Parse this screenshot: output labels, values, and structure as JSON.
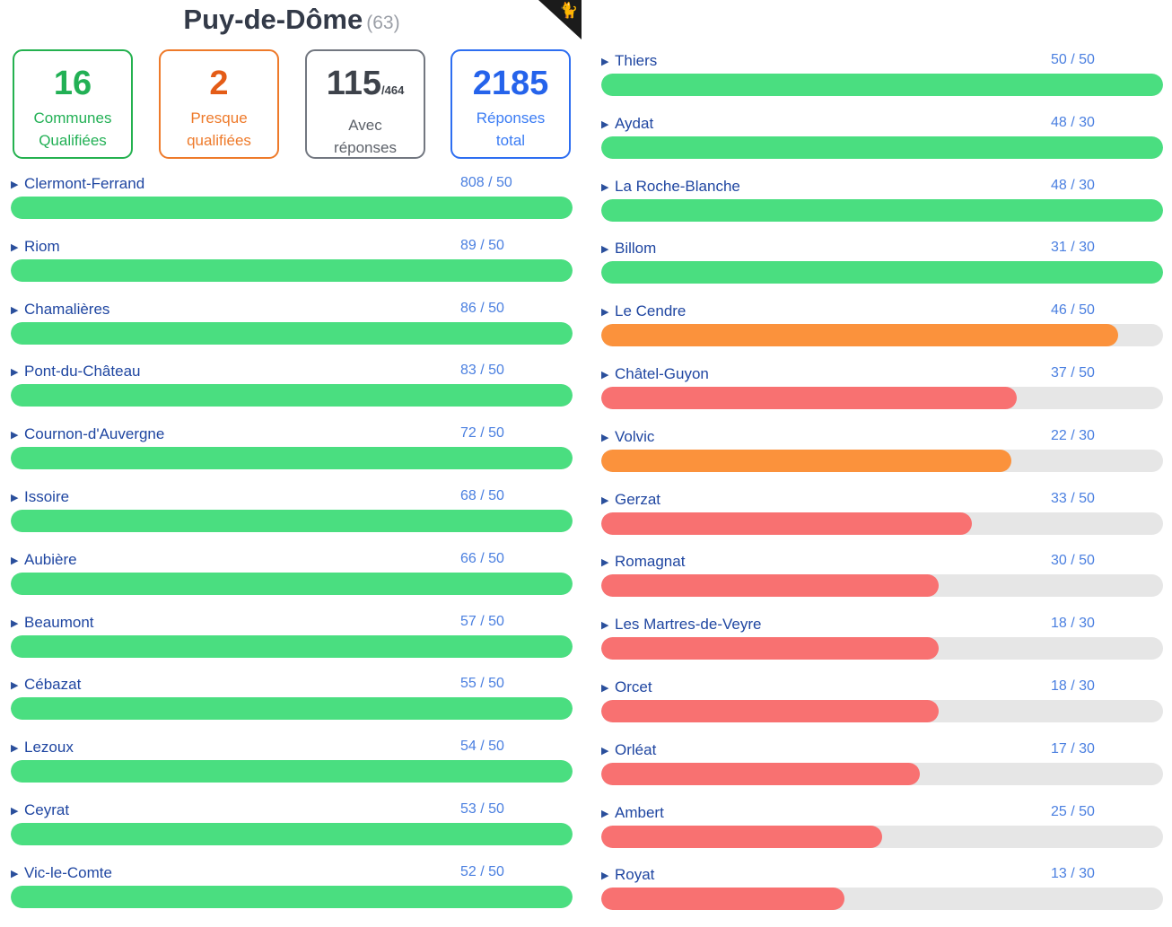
{
  "header": {
    "title": "Puy-de-Dôme",
    "code": "(63)"
  },
  "stats": {
    "qualified": {
      "value": "16",
      "label1": "Communes",
      "label2": "Qualifiées"
    },
    "almost": {
      "value": "2",
      "label1": "Presque",
      "label2": "qualifiées"
    },
    "with_responses": {
      "value": "115",
      "total": "/464",
      "label1": "Avec",
      "label2": "réponses"
    },
    "responses": {
      "value": "2185",
      "label1": "Réponses",
      "label2": "total"
    }
  },
  "colors": {
    "green": "#4ade80",
    "orange": "#fb923c",
    "red": "#f87171",
    "track": "#e6e6e6"
  },
  "left_column": [
    {
      "name": "Clermont-Ferrand",
      "score": "808 / 50",
      "progress": 1.0,
      "status": "green"
    },
    {
      "name": "Riom",
      "score": "89 / 50",
      "progress": 1.0,
      "status": "green"
    },
    {
      "name": "Chamalières",
      "score": "86 / 50",
      "progress": 1.0,
      "status": "green"
    },
    {
      "name": "Pont-du-Château",
      "score": "83 / 50",
      "progress": 1.0,
      "status": "green"
    },
    {
      "name": "Cournon-d'Auvergne",
      "score": "72 / 50",
      "progress": 1.0,
      "status": "green"
    },
    {
      "name": "Issoire",
      "score": "68 / 50",
      "progress": 1.0,
      "status": "green"
    },
    {
      "name": "Aubière",
      "score": "66 / 50",
      "progress": 1.0,
      "status": "green"
    },
    {
      "name": "Beaumont",
      "score": "57 / 50",
      "progress": 1.0,
      "status": "green"
    },
    {
      "name": "Cébazat",
      "score": "55 / 50",
      "progress": 1.0,
      "status": "green"
    },
    {
      "name": "Lezoux",
      "score": "54 / 50",
      "progress": 1.0,
      "status": "green"
    },
    {
      "name": "Ceyrat",
      "score": "53 / 50",
      "progress": 1.0,
      "status": "green"
    },
    {
      "name": "Vic-le-Comte",
      "score": "52 / 50",
      "progress": 1.0,
      "status": "green"
    }
  ],
  "right_column": [
    {
      "name": "Thiers",
      "score": "50 / 50",
      "progress": 1.0,
      "status": "green"
    },
    {
      "name": "Aydat",
      "score": "48 / 30",
      "progress": 1.0,
      "status": "green"
    },
    {
      "name": "La Roche-Blanche",
      "score": "48 / 30",
      "progress": 1.0,
      "status": "green"
    },
    {
      "name": "Billom",
      "score": "31 / 30",
      "progress": 1.0,
      "status": "green"
    },
    {
      "name": "Le Cendre",
      "score": "46 / 50",
      "progress": 0.92,
      "status": "orange"
    },
    {
      "name": "Châtel-Guyon",
      "score": "37 / 50",
      "progress": 0.74,
      "status": "red"
    },
    {
      "name": "Volvic",
      "score": "22 / 30",
      "progress": 0.73,
      "status": "orange"
    },
    {
      "name": "Gerzat",
      "score": "33 / 50",
      "progress": 0.66,
      "status": "red"
    },
    {
      "name": "Romagnat",
      "score": "30 / 50",
      "progress": 0.6,
      "status": "red"
    },
    {
      "name": "Les Martres-de-Veyre",
      "score": "18 / 30",
      "progress": 0.6,
      "status": "red"
    },
    {
      "name": "Orcet",
      "score": "18 / 30",
      "progress": 0.6,
      "status": "red"
    },
    {
      "name": "Orléat",
      "score": "17 / 30",
      "progress": 0.567,
      "status": "red"
    },
    {
      "name": "Ambert",
      "score": "25 / 50",
      "progress": 0.5,
      "status": "red"
    },
    {
      "name": "Royat",
      "score": "13 / 30",
      "progress": 0.433,
      "status": "red"
    }
  ]
}
